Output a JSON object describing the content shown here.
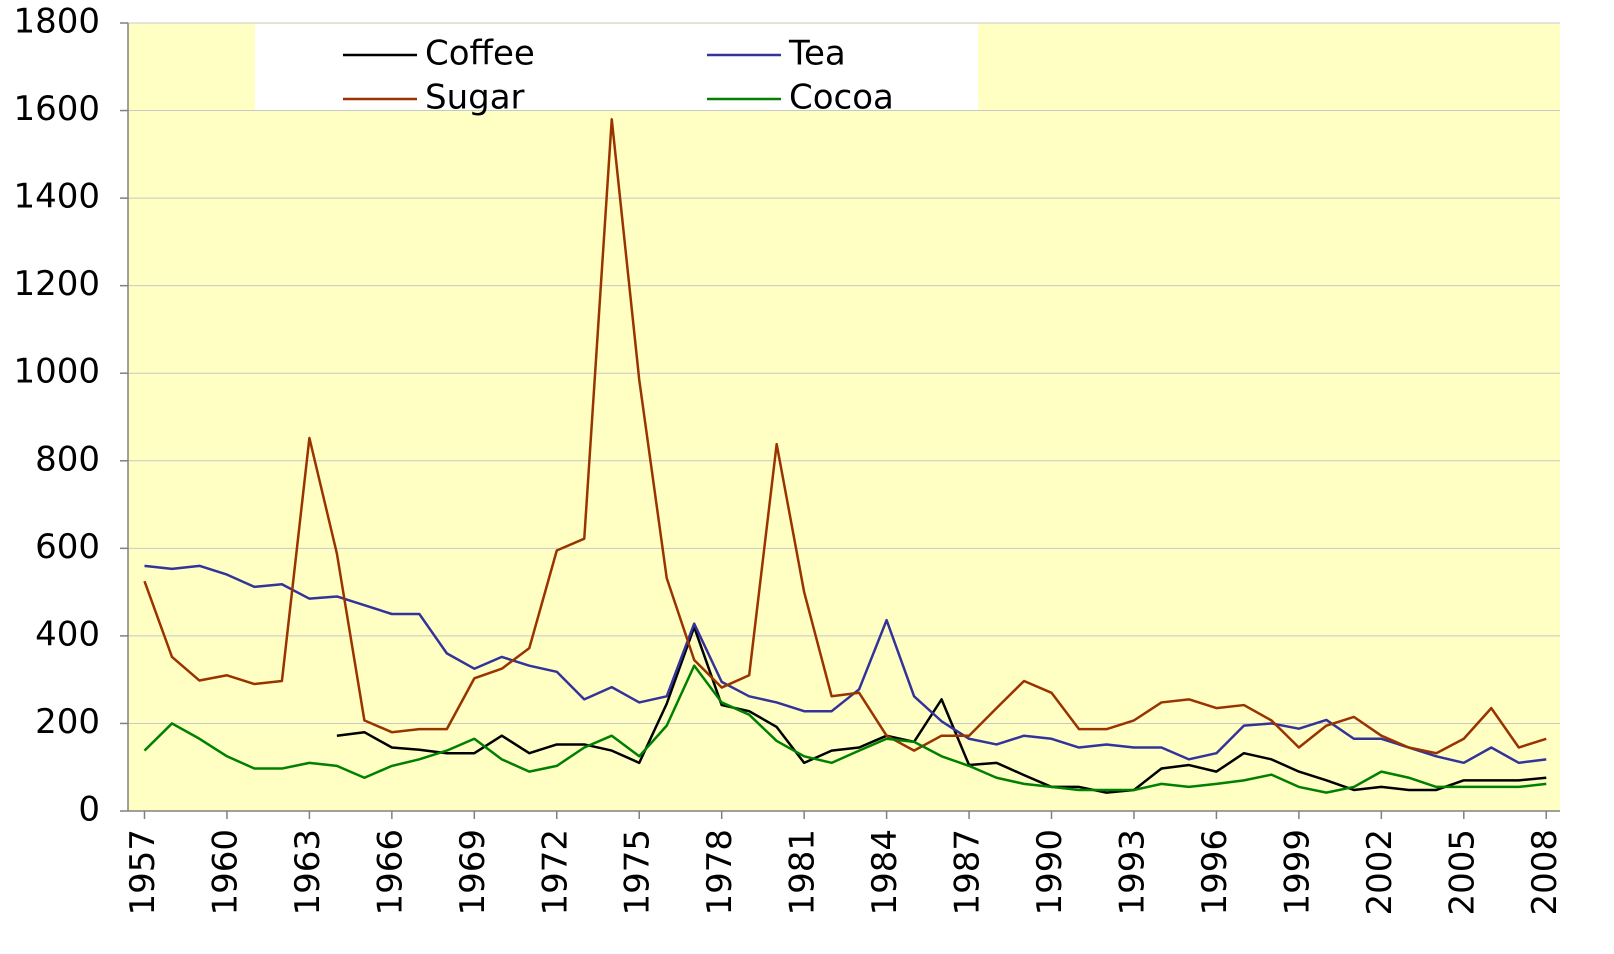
{
  "chart_data": {
    "type": "line",
    "x": [
      1957,
      1958,
      1959,
      1960,
      1961,
      1962,
      1963,
      1964,
      1965,
      1966,
      1967,
      1968,
      1969,
      1970,
      1971,
      1972,
      1973,
      1974,
      1975,
      1976,
      1977,
      1978,
      1979,
      1980,
      1981,
      1982,
      1983,
      1984,
      1985,
      1986,
      1987,
      1988,
      1989,
      1990,
      1991,
      1992,
      1993,
      1994,
      1995,
      1996,
      1997,
      1998,
      1999,
      2000,
      2001,
      2002,
      2003,
      2004,
      2005,
      2006,
      2007,
      2008
    ],
    "xlim": [
      1956.4,
      2008.5
    ],
    "xticks": [
      1957,
      1960,
      1963,
      1966,
      1969,
      1972,
      1975,
      1978,
      1981,
      1984,
      1987,
      1990,
      1993,
      1996,
      1999,
      2002,
      2005,
      2008
    ],
    "ylim": [
      0,
      1800
    ],
    "yticks": [
      0,
      200,
      400,
      600,
      800,
      1000,
      1200,
      1400,
      1600,
      1800
    ],
    "grid": true,
    "legend": "top",
    "background": "#ffffc4",
    "series": [
      {
        "name": "Coffee",
        "color": "#000000",
        "values": [
          null,
          null,
          null,
          null,
          null,
          null,
          null,
          172,
          180,
          145,
          140,
          132,
          132,
          172,
          132,
          152,
          152,
          138,
          110,
          245,
          420,
          242,
          228,
          192,
          110,
          138,
          145,
          172,
          158,
          255,
          105,
          110,
          82,
          55,
          55,
          42,
          48,
          97,
          105,
          90,
          132,
          118,
          90,
          70,
          48,
          55,
          48,
          48,
          70,
          70,
          70,
          76
        ]
      },
      {
        "name": "Tea",
        "color": "#333399",
        "values": [
          560,
          553,
          560,
          540,
          512,
          518,
          485,
          490,
          470,
          450,
          450,
          360,
          325,
          352,
          332,
          318,
          255,
          283,
          248,
          262,
          428,
          295,
          262,
          248,
          228,
          228,
          278,
          436,
          262,
          205,
          165,
          152,
          172,
          165,
          145,
          152,
          145,
          145,
          118,
          132,
          195,
          200,
          188,
          208,
          165,
          165,
          145,
          125,
          110,
          145,
          110,
          118
        ]
      },
      {
        "name": "Sugar",
        "color": "#993300",
        "values": [
          525,
          352,
          298,
          310,
          290,
          297,
          852,
          588,
          207,
          180,
          187,
          187,
          303,
          325,
          372,
          595,
          622,
          1580,
          985,
          532,
          345,
          282,
          310,
          838,
          500,
          262,
          270,
          172,
          138,
          172,
          172,
          235,
          297,
          270,
          187,
          187,
          207,
          248,
          255,
          235,
          242,
          207,
          145,
          195,
          215,
          172,
          145,
          132,
          165,
          235,
          145,
          165
        ]
      },
      {
        "name": "Cocoa",
        "color": "#008000",
        "values": [
          138,
          200,
          165,
          125,
          97,
          97,
          110,
          103,
          76,
          103,
          118,
          138,
          165,
          118,
          90,
          103,
          145,
          172,
          125,
          195,
          332,
          248,
          220,
          160,
          125,
          110,
          138,
          165,
          158,
          125,
          103,
          76,
          62,
          55,
          48,
          48,
          48,
          62,
          55,
          62,
          70,
          83,
          55,
          42,
          55,
          90,
          76,
          55,
          55,
          55,
          55,
          62
        ]
      }
    ]
  }
}
